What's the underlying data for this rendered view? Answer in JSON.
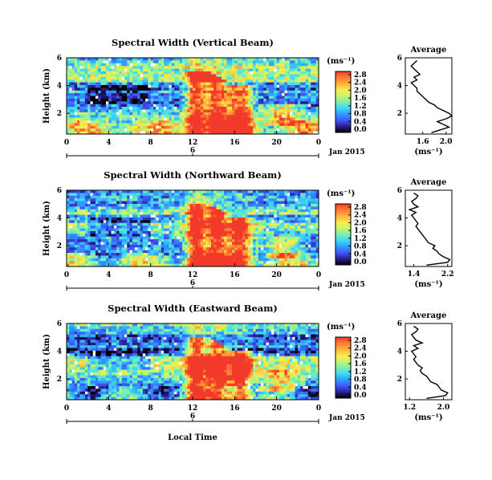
{
  "figure": {
    "xlabel": "Local Time",
    "date_label": "Jan 2015",
    "date_marker": "6"
  },
  "colors": {
    "colormap": [
      "#000000",
      "#2a1f8f",
      "#3f59ff",
      "#2f9bff",
      "#3fd9f5",
      "#7bf0b0",
      "#c8f56a",
      "#ffe94a",
      "#ffb23a",
      "#ff7a33",
      "#f23a2a"
    ],
    "mask": "#ffffff",
    "axis": "#000000"
  },
  "chart_data": [
    {
      "type": "heatmap",
      "title": "Spectral Width (Vertical Beam)",
      "ylabel": "Height (km)",
      "xticks": [
        "0",
        "4",
        "8",
        "12",
        "16",
        "20",
        "0"
      ],
      "yticks": [
        "6",
        "4",
        "2"
      ],
      "xlim": [
        0,
        24
      ],
      "ylim": [
        0.5,
        6
      ],
      "cbar_unit": "(ms⁻¹)",
      "cbar_ticks": [
        "2.8",
        "2.4",
        "2.0",
        "1.6",
        "1.2",
        "0.8",
        "0.4",
        "0.0"
      ],
      "clim": [
        0,
        3.0
      ],
      "profile": {
        "title": "Average",
        "xlabel": "(ms⁻¹)",
        "xticks": [
          "1.6",
          "2.0"
        ],
        "yticks": [
          "6",
          "4",
          "2"
        ],
        "xlim": [
          1.3,
          2.1
        ],
        "ylim": [
          0.5,
          6
        ],
        "height_km": [
          0.6,
          0.8,
          1.0,
          1.2,
          1.4,
          1.6,
          1.8,
          2.0,
          2.2,
          2.4,
          2.6,
          2.8,
          3.0,
          3.2,
          3.4,
          3.6,
          3.8,
          4.0,
          4.2,
          4.4,
          4.6,
          4.8,
          5.0,
          5.2,
          5.4,
          5.6,
          5.8
        ],
        "width": [
          1.75,
          1.9,
          2.05,
          1.95,
          1.85,
          2.0,
          2.1,
          2.05,
          1.95,
          1.85,
          1.8,
          1.7,
          1.65,
          1.6,
          1.55,
          1.5,
          1.5,
          1.45,
          1.4,
          1.5,
          1.45,
          1.55,
          1.5,
          1.45,
          1.4,
          1.45,
          1.5
        ]
      }
    },
    {
      "type": "heatmap",
      "title": "Spectral Width (Northward Beam)",
      "ylabel": "Height (km)",
      "xticks": [
        "0",
        "4",
        "8",
        "12",
        "16",
        "20",
        "0"
      ],
      "yticks": [
        "6",
        "4",
        "2"
      ],
      "xlim": [
        0,
        24
      ],
      "ylim": [
        0.5,
        6
      ],
      "cbar_unit": "(ms⁻¹)",
      "cbar_ticks": [
        "2.8",
        "2.4",
        "2.0",
        "1.6",
        "1.2",
        "0.8",
        "0.4",
        "0.0"
      ],
      "clim": [
        0,
        3.0
      ],
      "profile": {
        "title": "Average",
        "xlabel": "(ms⁻¹)",
        "xticks": [
          "1.4",
          "2.2"
        ],
        "yticks": [
          "6",
          "4",
          "2"
        ],
        "xlim": [
          1.2,
          2.3
        ],
        "ylim": [
          0.5,
          6
        ],
        "height_km": [
          0.6,
          0.8,
          1.0,
          1.2,
          1.4,
          1.6,
          1.8,
          2.0,
          2.2,
          2.4,
          2.6,
          2.8,
          3.0,
          3.2,
          3.4,
          3.6,
          3.8,
          4.0,
          4.2,
          4.4,
          4.6,
          4.8,
          5.0,
          5.2,
          5.4,
          5.6,
          5.8
        ],
        "width": [
          1.7,
          2.2,
          2.25,
          2.1,
          2.0,
          1.95,
          1.85,
          1.9,
          1.75,
          1.7,
          1.65,
          1.6,
          1.55,
          1.5,
          1.45,
          1.5,
          1.45,
          1.4,
          1.35,
          1.45,
          1.3,
          1.5,
          1.4,
          1.35,
          1.45,
          1.5,
          1.4
        ]
      }
    },
    {
      "type": "heatmap",
      "title": "Spectral Width (Eastward Beam)",
      "ylabel": "Height (km)",
      "xticks": [
        "0",
        "4",
        "8",
        "12",
        "16",
        "20",
        "0"
      ],
      "yticks": [
        "6",
        "4",
        "2"
      ],
      "xlim": [
        0,
        24
      ],
      "ylim": [
        0.5,
        6
      ],
      "cbar_unit": "(ms⁻¹)",
      "cbar_ticks": [
        "2.8",
        "2.4",
        "2.0",
        "1.6",
        "1.2",
        "0.8",
        "0.4",
        "0.0"
      ],
      "clim": [
        0,
        3.0
      ],
      "profile": {
        "title": "Average",
        "xlabel": "(ms⁻¹)",
        "xticks": [
          "1.2",
          "2.0"
        ],
        "yticks": [
          "6",
          "4",
          "2"
        ],
        "xlim": [
          1.1,
          2.2
        ],
        "ylim": [
          0.5,
          6
        ],
        "height_km": [
          0.6,
          0.8,
          1.0,
          1.2,
          1.4,
          1.6,
          1.8,
          2.0,
          2.2,
          2.4,
          2.6,
          2.8,
          3.0,
          3.2,
          3.4,
          3.6,
          3.8,
          4.0,
          4.2,
          4.4,
          4.6,
          4.8,
          5.0,
          5.2,
          5.4,
          5.6,
          5.8
        ],
        "width": [
          1.6,
          2.05,
          2.1,
          1.95,
          1.9,
          1.85,
          1.7,
          1.65,
          1.6,
          1.5,
          1.45,
          1.5,
          1.4,
          1.35,
          1.3,
          1.35,
          1.3,
          1.25,
          1.4,
          1.3,
          1.5,
          1.35,
          1.3,
          1.25,
          1.35,
          1.4,
          1.3
        ]
      }
    }
  ]
}
